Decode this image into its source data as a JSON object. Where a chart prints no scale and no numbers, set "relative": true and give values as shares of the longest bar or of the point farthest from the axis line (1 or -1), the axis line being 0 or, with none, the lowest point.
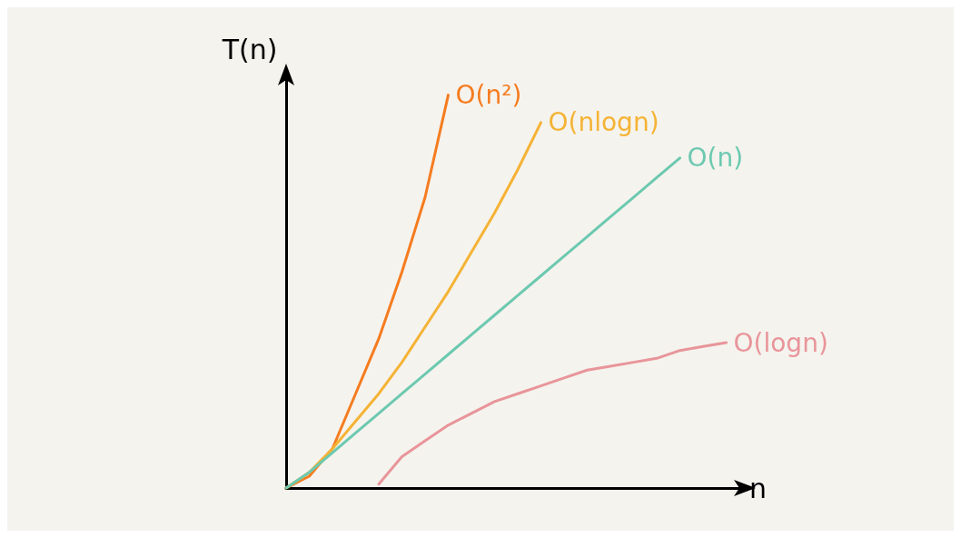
{
  "chart_data": {
    "type": "line",
    "relative": true,
    "xlabel": "n",
    "ylabel": "T(n)",
    "marker": "none",
    "line_style": "solid",
    "grid": false,
    "legend": false,
    "categories": [
      null,
      null,
      null,
      null,
      null,
      null,
      null,
      null,
      null,
      null,
      null,
      null,
      null,
      null,
      null,
      null,
      null,
      null,
      null,
      null,
      null
    ],
    "series": [
      {
        "name": "O(n²)",
        "color": "#f57c1f",
        "values": [
          0,
          0.03,
          0.1,
          0.24,
          0.38,
          0.55,
          0.74,
          1.0,
          null,
          null,
          null,
          null,
          null,
          null,
          null,
          null,
          null,
          null,
          null,
          null,
          null
        ]
      },
      {
        "name": "O(nlogn)",
        "color": "#f5b335",
        "values": [
          0,
          0.04,
          0.1,
          0.17,
          0.24,
          0.32,
          0.41,
          0.5,
          0.6,
          0.7,
          0.81,
          0.93,
          null,
          null,
          null,
          null,
          null,
          null,
          null,
          null,
          null
        ]
      },
      {
        "name": "O(n)",
        "color": "#6cc9b0",
        "values": [
          0,
          0.04,
          0.09,
          0.14,
          0.19,
          0.24,
          0.29,
          0.34,
          0.39,
          0.44,
          0.49,
          0.54,
          0.59,
          0.64,
          0.69,
          0.74,
          0.79,
          0.84,
          null,
          null,
          null
        ]
      },
      {
        "name": "O(logn)",
        "color": "#e8959a",
        "values": [
          null,
          null,
          null,
          null,
          0.01,
          0.08,
          0.12,
          0.16,
          0.19,
          0.22,
          0.24,
          0.26,
          0.28,
          0.3,
          0.31,
          0.32,
          0.33,
          0.35,
          0.36,
          0.37,
          null
        ]
      }
    ]
  }
}
